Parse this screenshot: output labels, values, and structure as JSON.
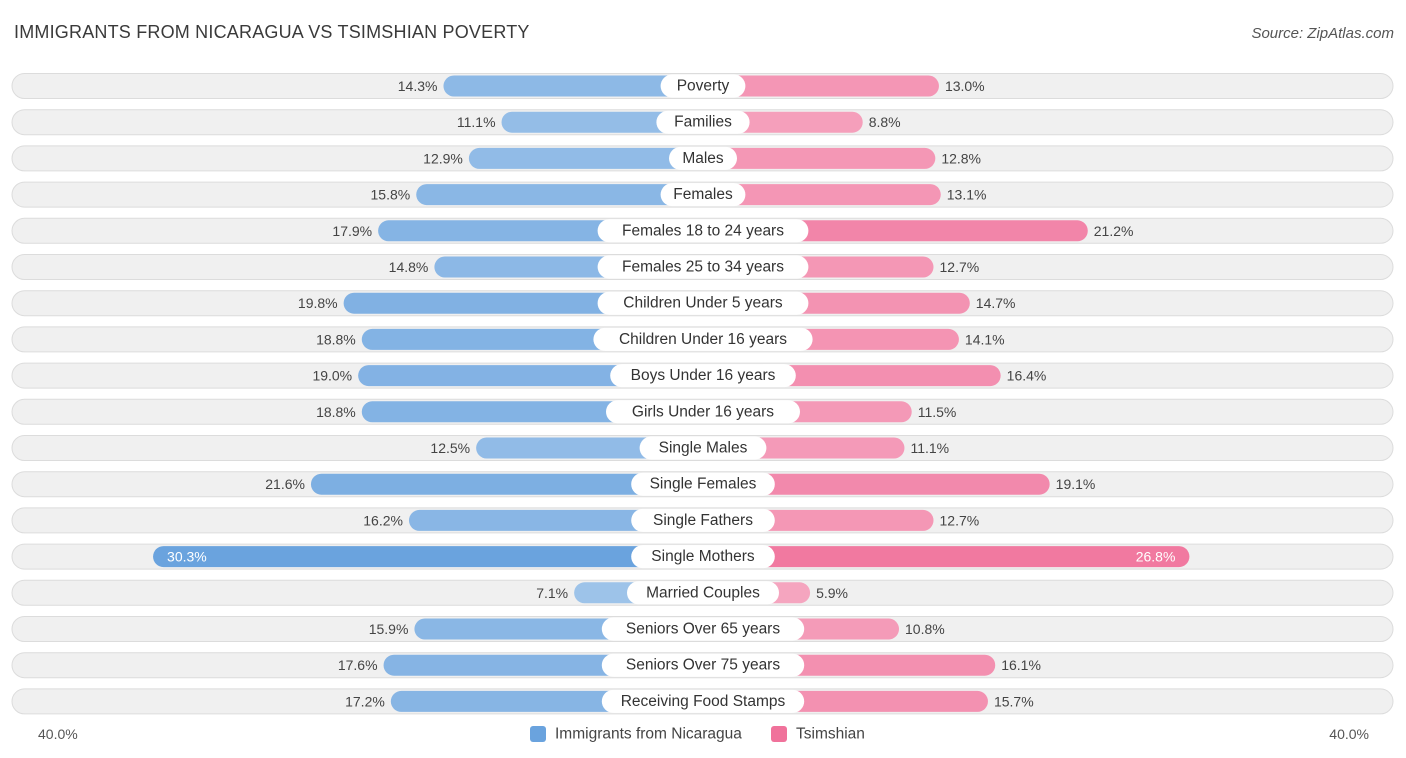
{
  "title": "IMMIGRANTS FROM NICARAGUA VS TSIMSHIAN POVERTY",
  "source": "Source: ZipAtlas.com",
  "chart_data": {
    "type": "bar",
    "orientation": "horizontal-diverging",
    "categories": [
      "Poverty",
      "Families",
      "Males",
      "Females",
      "Females 18 to 24 years",
      "Females 25 to 34 years",
      "Children Under 5 years",
      "Children Under 16 years",
      "Boys Under 16 years",
      "Girls Under 16 years",
      "Single Males",
      "Single Females",
      "Single Fathers",
      "Single Mothers",
      "Married Couples",
      "Seniors Over 65 years",
      "Seniors Over 75 years",
      "Receiving Food Stamps"
    ],
    "series": [
      {
        "name": "Immigrants from Nicaragua",
        "color": "#6aa3de",
        "values": [
          14.3,
          11.1,
          12.9,
          15.8,
          17.9,
          14.8,
          19.8,
          18.8,
          19.0,
          18.8,
          12.5,
          21.6,
          16.2,
          30.3,
          7.1,
          15.9,
          17.6,
          17.2
        ],
        "labels": [
          "14.3%",
          "11.1%",
          "12.9%",
          "15.8%",
          "17.9%",
          "14.8%",
          "19.8%",
          "18.8%",
          "19.0%",
          "18.8%",
          "12.5%",
          "21.6%",
          "16.2%",
          "30.3%",
          "7.1%",
          "15.9%",
          "17.6%",
          "17.2%"
        ]
      },
      {
        "name": "Tsimshian",
        "color": "#f0729b",
        "values": [
          13.0,
          8.8,
          12.8,
          13.1,
          21.2,
          12.7,
          14.7,
          14.1,
          16.4,
          11.5,
          11.1,
          19.1,
          12.7,
          26.8,
          5.9,
          10.8,
          16.1,
          15.7
        ],
        "labels": [
          "13.0%",
          "8.8%",
          "12.8%",
          "13.1%",
          "21.2%",
          "12.7%",
          "14.7%",
          "14.1%",
          "16.4%",
          "11.5%",
          "11.1%",
          "19.1%",
          "12.7%",
          "26.8%",
          "5.9%",
          "10.8%",
          "16.1%",
          "15.7%"
        ]
      }
    ],
    "xlim": [
      -40,
      40
    ],
    "axis_min_label": "40.0%",
    "axis_max_label": "40.0%",
    "legend": [
      "Immigrants from Nicaragua",
      "Tsimshian"
    ]
  }
}
